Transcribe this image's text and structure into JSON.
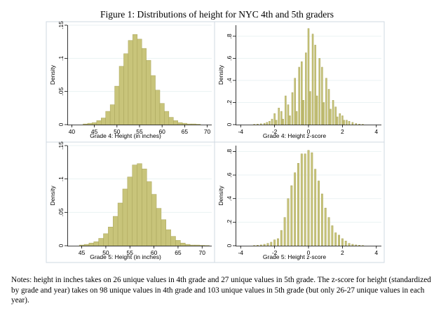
{
  "figure": {
    "title": "Figure 1: Distributions of height for NYC 4th and 5th graders",
    "notes": "Notes: height in inches takes on 26 unique values in 4th grade and 27 unique values in 5th grade. The z-score for height (standardized by grade and year) takes on 98 unique values in 4th grade and 103 unique values in 5th grade (but only 26-27 unique values in each year).",
    "bar_color": "#c8c47a",
    "bar_edge_color": "#a8a45a"
  },
  "chart_data": [
    {
      "type": "bar",
      "id": "g4-height",
      "xlabel": "Grade 4: Height (in inches)",
      "ylabel": "Density",
      "xlim": [
        39,
        71
      ],
      "ylim": [
        0,
        0.15
      ],
      "xticks": [
        40,
        45,
        50,
        55,
        60,
        65,
        70
      ],
      "yticks": [
        0,
        0.05,
        0.1,
        0.15
      ],
      "ytick_labels": [
        "0",
        ".05",
        ".1",
        ".15"
      ],
      "bin_width": 1,
      "x": [
        43,
        44,
        45,
        46,
        47,
        48,
        49,
        50,
        51,
        52,
        53,
        54,
        55,
        56,
        57,
        58,
        59,
        60,
        61,
        62,
        63,
        64,
        65,
        66,
        67,
        68
      ],
      "values": [
        0.001,
        0.002,
        0.003,
        0.006,
        0.01,
        0.02,
        0.03,
        0.058,
        0.088,
        0.107,
        0.127,
        0.136,
        0.129,
        0.115,
        0.097,
        0.074,
        0.052,
        0.032,
        0.02,
        0.011,
        0.006,
        0.003,
        0.002,
        0.001,
        0.001,
        0.0005
      ]
    },
    {
      "type": "bar",
      "id": "g4-zscore",
      "xlabel": "Grade 4: Height z-score",
      "ylabel": "Density",
      "xlim": [
        -4.3,
        4.3
      ],
      "ylim": [
        0,
        0.9
      ],
      "xticks": [
        -4,
        -2,
        0,
        2,
        4
      ],
      "yticks": [
        0,
        0.2,
        0.4,
        0.6,
        0.8
      ],
      "ytick_labels": [
        "0",
        ".2",
        ".4",
        ".6",
        ".8"
      ],
      "bin_width": 0.085,
      "x": [
        -3.2,
        -3.0,
        -2.8,
        -2.6,
        -2.45,
        -2.3,
        -2.15,
        -2.0,
        -1.9,
        -1.75,
        -1.6,
        -1.5,
        -1.35,
        -1.2,
        -1.1,
        -0.95,
        -0.8,
        -0.7,
        -0.55,
        -0.4,
        -0.3,
        -0.15,
        0.0,
        0.1,
        0.25,
        0.4,
        0.5,
        0.65,
        0.8,
        0.9,
        1.05,
        1.2,
        1.3,
        1.45,
        1.6,
        1.7,
        1.85,
        2.0,
        2.1,
        2.25,
        2.4,
        2.6,
        2.8,
        3.0,
        3.2
      ],
      "values": [
        0.003,
        0.005,
        0.008,
        0.012,
        0.02,
        0.03,
        0.05,
        0.1,
        0.04,
        0.15,
        0.12,
        0.05,
        0.26,
        0.18,
        0.08,
        0.29,
        0.42,
        0.12,
        0.52,
        0.57,
        0.22,
        0.65,
        0.87,
        0.3,
        0.82,
        0.72,
        0.26,
        0.6,
        0.52,
        0.2,
        0.42,
        0.32,
        0.14,
        0.22,
        0.16,
        0.07,
        0.1,
        0.08,
        0.04,
        0.04,
        0.03,
        0.02,
        0.01,
        0.005,
        0.003
      ]
    },
    {
      "type": "bar",
      "id": "g5-height",
      "xlabel": "Grade 5: Height (in inches)",
      "ylabel": "Density",
      "xlim": [
        42,
        72
      ],
      "ylim": [
        0,
        0.15
      ],
      "xticks": [
        45,
        50,
        55,
        60,
        65,
        70
      ],
      "yticks": [
        0,
        0.05,
        0.1,
        0.15
      ],
      "ytick_labels": [
        "0",
        ".05",
        ".1",
        ".15"
      ],
      "bin_width": 1,
      "x": [
        45,
        46,
        47,
        48,
        49,
        50,
        51,
        52,
        53,
        54,
        55,
        56,
        57,
        58,
        59,
        60,
        61,
        62,
        63,
        64,
        65,
        66,
        67,
        68,
        69,
        70,
        71
      ],
      "values": [
        0.001,
        0.002,
        0.004,
        0.006,
        0.011,
        0.018,
        0.028,
        0.044,
        0.064,
        0.085,
        0.103,
        0.121,
        0.123,
        0.115,
        0.096,
        0.077,
        0.056,
        0.039,
        0.024,
        0.014,
        0.008,
        0.004,
        0.002,
        0.001,
        0.001,
        0.0005,
        0.0003
      ]
    },
    {
      "type": "bar",
      "id": "g5-zscore",
      "xlabel": "Grade 5: Height z-score",
      "ylabel": "Density",
      "xlim": [
        -4.3,
        4.3
      ],
      "ylim": [
        0,
        0.85
      ],
      "xticks": [
        -4,
        -2,
        0,
        2,
        4
      ],
      "yticks": [
        0,
        0.2,
        0.4,
        0.6,
        0.8
      ],
      "ytick_labels": [
        "0",
        ".2",
        ".4",
        ".6",
        ".8"
      ],
      "bin_width": 0.1,
      "x": [
        -3.2,
        -3.0,
        -2.8,
        -2.6,
        -2.4,
        -2.2,
        -2.0,
        -1.8,
        -1.6,
        -1.4,
        -1.2,
        -1.0,
        -0.8,
        -0.6,
        -0.4,
        -0.2,
        0.0,
        0.2,
        0.4,
        0.6,
        0.8,
        1.0,
        1.2,
        1.4,
        1.6,
        1.8,
        2.0,
        2.2,
        2.4,
        2.6,
        2.8,
        3.0,
        3.2
      ],
      "values": [
        0.002,
        0.004,
        0.007,
        0.012,
        0.02,
        0.03,
        0.05,
        0.06,
        0.13,
        0.24,
        0.4,
        0.51,
        0.62,
        0.7,
        0.78,
        0.78,
        0.81,
        0.79,
        0.65,
        0.55,
        0.44,
        0.32,
        0.24,
        0.17,
        0.11,
        0.09,
        0.06,
        0.04,
        0.02,
        0.012,
        0.007,
        0.004,
        0.002
      ]
    }
  ]
}
